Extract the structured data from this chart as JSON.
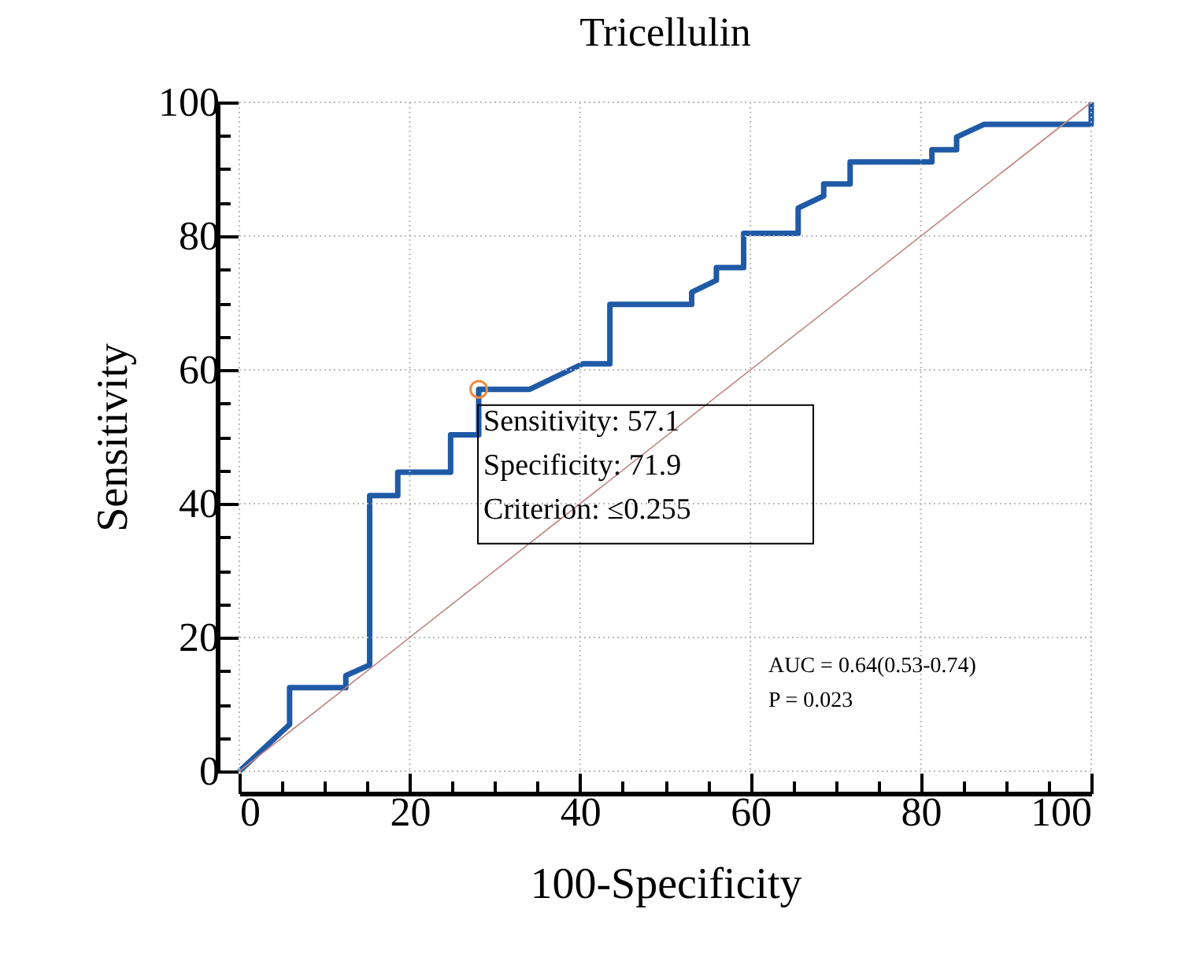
{
  "chart_data": {
    "type": "line",
    "title": "Tricellulin",
    "xlabel": "100-Specificity",
    "ylabel": "Sensitivity",
    "xlim": [
      0,
      100
    ],
    "ylim": [
      0,
      100
    ],
    "xticks": [
      0,
      {
        "value": 5,
        "label": null
      },
      {
        "value": 10,
        "label": null
      },
      {
        "value": 15,
        "label": null
      },
      20,
      {
        "value": 25,
        "label": null
      },
      {
        "value": 30,
        "label": null
      },
      {
        "value": 35,
        "label": null
      },
      40,
      {
        "value": 45,
        "label": null
      },
      {
        "value": 50,
        "label": null
      },
      {
        "value": 55,
        "label": null
      },
      60,
      {
        "value": 65,
        "label": null
      },
      {
        "value": 70,
        "label": null
      },
      {
        "value": 75,
        "label": null
      },
      80,
      {
        "value": 85,
        "label": null
      },
      {
        "value": 90,
        "label": null
      },
      {
        "value": 95,
        "label": null
      },
      100
    ],
    "yticks": [
      0,
      {
        "value": 5,
        "label": null
      },
      {
        "value": 10,
        "label": null
      },
      {
        "value": 15,
        "label": null
      },
      20,
      {
        "value": 25,
        "label": null
      },
      {
        "value": 30,
        "label": null
      },
      {
        "value": 35,
        "label": null
      },
      40,
      {
        "value": 45,
        "label": null
      },
      {
        "value": 50,
        "label": null
      },
      {
        "value": 55,
        "label": null
      },
      60,
      {
        "value": 65,
        "label": null
      },
      {
        "value": 70,
        "label": null
      },
      {
        "value": 75,
        "label": null
      },
      80,
      {
        "value": 85,
        "label": null
      },
      {
        "value": 90,
        "label": null
      },
      {
        "value": 95,
        "label": null
      },
      100
    ],
    "grid": true,
    "series": [
      {
        "color": "#1f5aa6",
        "x": [
          0,
          5.9,
          5.9,
          12.5,
          12.5,
          15.3,
          15.3,
          18.6,
          18.6,
          24.8,
          24.8,
          28.1,
          28.1,
          34.1,
          40.3,
          43.5,
          43.5,
          53.1,
          53.1,
          56.0,
          56.0,
          59.2,
          59.2,
          65.6,
          65.6,
          68.6,
          68.6,
          71.7,
          71.7,
          81.3,
          81.3,
          84.2,
          84.2,
          87.4,
          100,
          100
        ],
        "values": [
          0,
          7.0,
          12.5,
          12.5,
          14.3,
          15.9,
          41.2,
          41.2,
          44.7,
          44.7,
          50.3,
          50.3,
          57.1,
          57.1,
          60.9,
          60.9,
          69.8,
          69.8,
          71.6,
          73.4,
          75.3,
          75.3,
          80.4,
          80.4,
          84.2,
          86.0,
          87.8,
          87.8,
          91.1,
          91.1,
          92.9,
          92.9,
          94.8,
          96.7,
          96.7,
          100
        ]
      },
      {
        "color": "#c08585",
        "x": [
          0,
          100
        ],
        "values": [
          0,
          100
        ]
      },
      {
        "type": "scatter",
        "marker": "circle",
        "color": "#f08a3c",
        "x": [
          28.1
        ],
        "values": [
          57.1
        ]
      }
    ],
    "annotations": [
      {
        "text": "Sensitivity: 57.1\nSpecificity: 71.9\nCriterion: ≤0.255",
        "x": 28.1,
        "y": 57.1
      },
      "AUC = 0.64(0.53-0.74)",
      "P = 0.023"
    ]
  }
}
